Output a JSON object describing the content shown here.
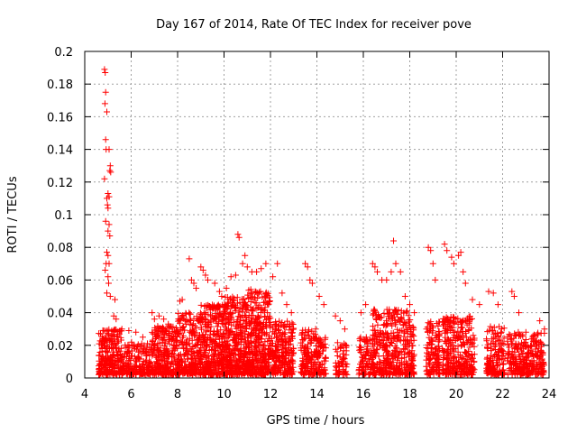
{
  "chart_data": {
    "type": "scatter",
    "title": "Day 167 of 2014, Rate Of TEC Index for receiver pove",
    "xlabel": "GPS time / hours",
    "ylabel": "ROTI / TECUs",
    "xlim": [
      4,
      24
    ],
    "ylim": [
      0,
      0.2
    ],
    "xticks": [
      4,
      6,
      8,
      10,
      12,
      14,
      16,
      18,
      20,
      22,
      24
    ],
    "yticks": [
      0,
      0.02,
      0.04,
      0.06,
      0.08,
      0.1,
      0.12,
      0.14,
      0.16,
      0.18,
      0.2
    ],
    "xtick_labels": [
      "4",
      "6",
      "8",
      "10",
      "12",
      "14",
      "16",
      "18",
      "20",
      "22",
      "24"
    ],
    "ytick_labels": [
      "0",
      "0.02",
      "0.04",
      "0.06",
      "0.08",
      "0.1",
      "0.12",
      "0.14",
      "0.16",
      "0.18",
      "0.2"
    ],
    "grid": true,
    "marker": "+",
    "color": "#ff0000",
    "series": [
      {
        "name": "ROTI",
        "points": [
          [
            4.85,
            0.189
          ],
          [
            4.88,
            0.187
          ],
          [
            4.9,
            0.175
          ],
          [
            4.87,
            0.168
          ],
          [
            4.95,
            0.163
          ],
          [
            4.9,
            0.146
          ],
          [
            4.92,
            0.14
          ],
          [
            5.05,
            0.14
          ],
          [
            5.1,
            0.13
          ],
          [
            5.08,
            0.127
          ],
          [
            5.12,
            0.126
          ],
          [
            4.85,
            0.122
          ],
          [
            5.0,
            0.113
          ],
          [
            5.05,
            0.111
          ],
          [
            4.95,
            0.11
          ],
          [
            4.98,
            0.106
          ],
          [
            5.0,
            0.104
          ],
          [
            4.9,
            0.096
          ],
          [
            5.05,
            0.094
          ],
          [
            5.0,
            0.09
          ],
          [
            5.08,
            0.087
          ],
          [
            4.95,
            0.077
          ],
          [
            5.0,
            0.075
          ],
          [
            4.92,
            0.07
          ],
          [
            5.05,
            0.07
          ],
          [
            4.88,
            0.066
          ],
          [
            5.0,
            0.062
          ],
          [
            5.03,
            0.058
          ],
          [
            4.95,
            0.052
          ],
          [
            5.1,
            0.05
          ],
          [
            5.3,
            0.048
          ],
          [
            5.25,
            0.038
          ],
          [
            5.35,
            0.036
          ],
          [
            5.6,
            0.03
          ],
          [
            5.9,
            0.029
          ],
          [
            6.2,
            0.028
          ],
          [
            6.5,
            0.025
          ],
          [
            6.9,
            0.04
          ],
          [
            7.0,
            0.036
          ],
          [
            7.2,
            0.038
          ],
          [
            7.4,
            0.036
          ],
          [
            7.6,
            0.033
          ],
          [
            8.1,
            0.047
          ],
          [
            8.2,
            0.048
          ],
          [
            8.5,
            0.073
          ],
          [
            8.6,
            0.06
          ],
          [
            8.7,
            0.058
          ],
          [
            8.8,
            0.055
          ],
          [
            9.0,
            0.068
          ],
          [
            9.1,
            0.066
          ],
          [
            9.2,
            0.063
          ],
          [
            9.3,
            0.06
          ],
          [
            9.6,
            0.058
          ],
          [
            9.8,
            0.053
          ],
          [
            9.9,
            0.05
          ],
          [
            10.1,
            0.055
          ],
          [
            10.3,
            0.062
          ],
          [
            10.5,
            0.063
          ],
          [
            10.6,
            0.088
          ],
          [
            10.65,
            0.086
          ],
          [
            10.8,
            0.07
          ],
          [
            10.9,
            0.075
          ],
          [
            11.0,
            0.068
          ],
          [
            11.2,
            0.065
          ],
          [
            11.4,
            0.065
          ],
          [
            11.6,
            0.067
          ],
          [
            11.8,
            0.07
          ],
          [
            12.1,
            0.062
          ],
          [
            12.3,
            0.07
          ],
          [
            12.5,
            0.052
          ],
          [
            12.7,
            0.045
          ],
          [
            12.9,
            0.04
          ],
          [
            13.5,
            0.07
          ],
          [
            13.6,
            0.068
          ],
          [
            13.7,
            0.06
          ],
          [
            13.8,
            0.058
          ],
          [
            14.1,
            0.05
          ],
          [
            14.3,
            0.045
          ],
          [
            14.8,
            0.038
          ],
          [
            15.0,
            0.035
          ],
          [
            15.2,
            0.03
          ],
          [
            15.9,
            0.04
          ],
          [
            16.1,
            0.045
          ],
          [
            16.4,
            0.07
          ],
          [
            16.5,
            0.068
          ],
          [
            16.6,
            0.065
          ],
          [
            16.8,
            0.06
          ],
          [
            17.0,
            0.06
          ],
          [
            17.2,
            0.065
          ],
          [
            17.3,
            0.084
          ],
          [
            17.4,
            0.07
          ],
          [
            17.6,
            0.065
          ],
          [
            17.8,
            0.05
          ],
          [
            18.0,
            0.045
          ],
          [
            18.2,
            0.04
          ],
          [
            18.8,
            0.08
          ],
          [
            18.9,
            0.078
          ],
          [
            19.0,
            0.07
          ],
          [
            19.1,
            0.06
          ],
          [
            19.5,
            0.082
          ],
          [
            19.6,
            0.078
          ],
          [
            19.8,
            0.074
          ],
          [
            19.9,
            0.07
          ],
          [
            20.1,
            0.075
          ],
          [
            20.2,
            0.077
          ],
          [
            20.3,
            0.065
          ],
          [
            20.4,
            0.058
          ],
          [
            20.7,
            0.048
          ],
          [
            21.0,
            0.045
          ],
          [
            21.4,
            0.053
          ],
          [
            21.6,
            0.052
          ],
          [
            21.8,
            0.045
          ],
          [
            22.4,
            0.053
          ],
          [
            22.5,
            0.05
          ],
          [
            22.7,
            0.04
          ],
          [
            23.0,
            0.028
          ],
          [
            23.3,
            0.025
          ],
          [
            23.6,
            0.035
          ],
          [
            23.8,
            0.03
          ]
        ],
        "density_bands": [
          {
            "x_range": [
              4.6,
              5.6
            ],
            "y_range": [
              0.002,
              0.03
            ],
            "count": 260
          },
          {
            "x_range": [
              5.6,
              6.9
            ],
            "y_range": [
              0.002,
              0.022
            ],
            "count": 200
          },
          {
            "x_range": [
              6.9,
              8.0
            ],
            "y_range": [
              0.002,
              0.032
            ],
            "count": 260
          },
          {
            "x_range": [
              8.0,
              9.0
            ],
            "y_range": [
              0.002,
              0.04
            ],
            "count": 260
          },
          {
            "x_range": [
              9.0,
              10.0
            ],
            "y_range": [
              0.002,
              0.045
            ],
            "count": 320
          },
          {
            "x_range": [
              10.0,
              11.0
            ],
            "y_range": [
              0.002,
              0.05
            ],
            "count": 360
          },
          {
            "x_range": [
              11.0,
              12.0
            ],
            "y_range": [
              0.002,
              0.055
            ],
            "count": 360
          },
          {
            "x_range": [
              12.0,
              13.0
            ],
            "y_range": [
              0.002,
              0.035
            ],
            "count": 240
          },
          {
            "x_range": [
              13.3,
              14.0
            ],
            "y_range": [
              0.002,
              0.03
            ],
            "count": 140
          },
          {
            "x_range": [
              14.0,
              14.4
            ],
            "y_range": [
              0.002,
              0.025
            ],
            "count": 60
          },
          {
            "x_range": [
              14.8,
              15.3
            ],
            "y_range": [
              0.002,
              0.022
            ],
            "count": 60
          },
          {
            "x_range": [
              15.8,
              16.4
            ],
            "y_range": [
              0.002,
              0.025
            ],
            "count": 90
          },
          {
            "x_range": [
              16.4,
              18.2
            ],
            "y_range": [
              0.002,
              0.042
            ],
            "count": 420
          },
          {
            "x_range": [
              18.7,
              19.3
            ],
            "y_range": [
              0.002,
              0.035
            ],
            "count": 120
          },
          {
            "x_range": [
              19.4,
              20.8
            ],
            "y_range": [
              0.002,
              0.038
            ],
            "count": 300
          },
          {
            "x_range": [
              21.3,
              22.1
            ],
            "y_range": [
              0.002,
              0.032
            ],
            "count": 160
          },
          {
            "x_range": [
              22.2,
              23.8
            ],
            "y_range": [
              0.002,
              0.028
            ],
            "count": 300
          }
        ]
      }
    ]
  }
}
